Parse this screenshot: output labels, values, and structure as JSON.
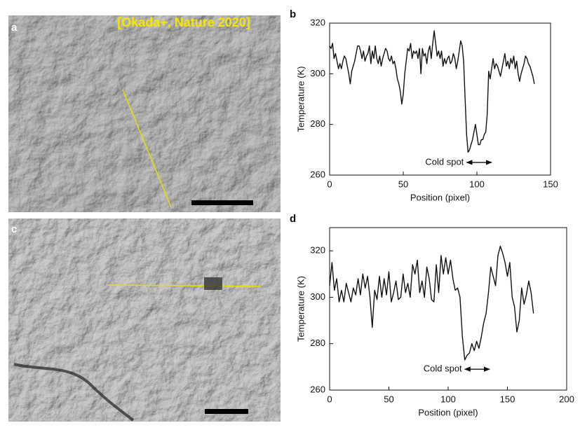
{
  "image_panels": [
    {
      "label": "a"
    },
    {
      "label": "c"
    }
  ],
  "credit": "[Okada+, Nature 2020]",
  "chart_data": [
    {
      "type": "line",
      "panel": "b",
      "ylabel": "Temperature (K)",
      "xlabel": "Position (pixel)",
      "xlim": [
        0,
        150
      ],
      "ylim": [
        260,
        320
      ],
      "xticks": [
        0,
        50,
        100,
        150
      ],
      "yticks": [
        260,
        280,
        300,
        320
      ],
      "annotation": {
        "text": "Cold spot",
        "span": [
          93,
          110
        ],
        "y": 265
      },
      "x": [
        0,
        1,
        2,
        3,
        4,
        5,
        6,
        7,
        8,
        9,
        10,
        11,
        12,
        13,
        14,
        15,
        16,
        17,
        18,
        19,
        20,
        21,
        22,
        23,
        24,
        25,
        26,
        27,
        28,
        29,
        30,
        31,
        32,
        33,
        34,
        35,
        36,
        37,
        38,
        39,
        40,
        41,
        42,
        43,
        44,
        45,
        46,
        47,
        48,
        49,
        50,
        51,
        52,
        53,
        54,
        55,
        56,
        57,
        58,
        59,
        60,
        61,
        62,
        63,
        64,
        65,
        66,
        67,
        68,
        69,
        70,
        71,
        72,
        73,
        74,
        75,
        76,
        77,
        78,
        79,
        80,
        81,
        82,
        83,
        84,
        85,
        86,
        87,
        88,
        89,
        90,
        91,
        92,
        93,
        94,
        95,
        96,
        97,
        98,
        99,
        100,
        101,
        102,
        103,
        104,
        105,
        106,
        107,
        108,
        109,
        110,
        111,
        112,
        113,
        114,
        115,
        116,
        117,
        118,
        119,
        120,
        121,
        122,
        123,
        124,
        125,
        126,
        127,
        128,
        129,
        130,
        131,
        132,
        133,
        134,
        135,
        136,
        137,
        138,
        139
      ],
      "series": [
        {
          "color": "#111111",
          "values": [
            311,
            310,
            312,
            306,
            308,
            305,
            302,
            304,
            302,
            305,
            307,
            306,
            303,
            300,
            296,
            301,
            303,
            305,
            308,
            311,
            311,
            309,
            306,
            309,
            305,
            307,
            308,
            311,
            304,
            309,
            306,
            311,
            306,
            304,
            307,
            303,
            306,
            308,
            310,
            309,
            306,
            305,
            307,
            304,
            305,
            302,
            298,
            296,
            293,
            288,
            292,
            300,
            305,
            310,
            309,
            312,
            306,
            309,
            308,
            309,
            306,
            310,
            300,
            310,
            307,
            308,
            304,
            309,
            311,
            306,
            312,
            317,
            312,
            307,
            309,
            306,
            309,
            303,
            306,
            304,
            306,
            307,
            304,
            305,
            308,
            306,
            302,
            305,
            309,
            313,
            311,
            305,
            290,
            276,
            269,
            270,
            272,
            274,
            277,
            280,
            276,
            272,
            272,
            274,
            274,
            276,
            277,
            284,
            301,
            298,
            302,
            306,
            302,
            304,
            303,
            301,
            299,
            302,
            305,
            308,
            303,
            305,
            302,
            306,
            304,
            307,
            302,
            305,
            300,
            297,
            300,
            302,
            304,
            307,
            306,
            304,
            303,
            301,
            299,
            296
          ]
        }
      ]
    },
    {
      "type": "line",
      "panel": "d",
      "ylabel": "Temperature (K)",
      "xlabel": "Position (pixel)",
      "xlim": [
        0,
        200
      ],
      "ylim": [
        260,
        330
      ],
      "xticks": [
        0,
        50,
        100,
        150,
        200
      ],
      "yticks": [
        260,
        280,
        300,
        320
      ],
      "annotation": {
        "text": "Cold spot",
        "span": [
          114,
          135
        ],
        "y": 269
      },
      "x": [
        0,
        2,
        4,
        6,
        8,
        10,
        12,
        14,
        16,
        18,
        20,
        22,
        24,
        26,
        28,
        30,
        32,
        34,
        36,
        38,
        40,
        42,
        44,
        46,
        48,
        50,
        52,
        54,
        56,
        58,
        60,
        62,
        64,
        66,
        68,
        70,
        72,
        74,
        76,
        78,
        80,
        82,
        84,
        86,
        88,
        90,
        92,
        94,
        96,
        98,
        100,
        102,
        104,
        106,
        108,
        110,
        112,
        114,
        116,
        118,
        120,
        122,
        124,
        126,
        128,
        130,
        132,
        134,
        136,
        138,
        140,
        142,
        144,
        146,
        148,
        150,
        152,
        154,
        156,
        158,
        160,
        162,
        164,
        166,
        168,
        170,
        172
      ],
      "series": [
        {
          "color": "#111111",
          "values": [
            305,
            315,
            303,
            308,
            298,
            303,
            298,
            306,
            302,
            298,
            304,
            301,
            308,
            301,
            310,
            304,
            309,
            300,
            287,
            303,
            299,
            309,
            300,
            308,
            301,
            311,
            298,
            302,
            307,
            299,
            300,
            310,
            302,
            306,
            300,
            314,
            310,
            316,
            302,
            307,
            300,
            313,
            308,
            299,
            298,
            314,
            302,
            318,
            310,
            317,
            310,
            316,
            308,
            303,
            304,
            300,
            283,
            273,
            275,
            276,
            280,
            277,
            281,
            278,
            283,
            289,
            293,
            302,
            313,
            309,
            305,
            318,
            322,
            319,
            315,
            309,
            315,
            300,
            296,
            285,
            290,
            304,
            297,
            301,
            307,
            302,
            293
          ]
        }
      ]
    }
  ]
}
